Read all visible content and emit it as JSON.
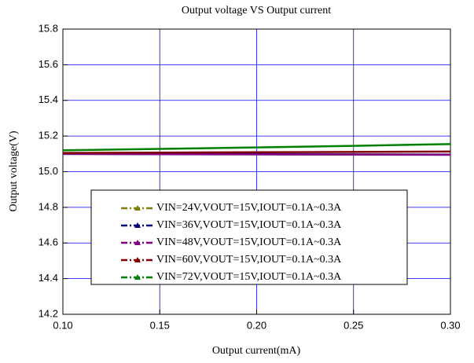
{
  "chart_data": {
    "type": "line",
    "title": "Output voltage VS Output current",
    "xlabel": "Output current(mA)",
    "ylabel": "Output voltage(V)",
    "x": [
      0.1,
      0.15,
      0.2,
      0.25,
      0.3
    ],
    "series": [
      {
        "name": "VIN=24V,VOUT=15V,IOUT=0.1A~0.3A",
        "color": "#808000",
        "values": [
          15.1,
          15.099,
          15.098,
          15.097,
          15.096
        ]
      },
      {
        "name": "VIN=36V,VOUT=15V,IOUT=0.1A~0.3A",
        "color": "#000080",
        "values": [
          15.1,
          15.099,
          15.098,
          15.097,
          15.096
        ]
      },
      {
        "name": "VIN=48V,VOUT=15V,IOUT=0.1A~0.3A",
        "color": "#800080",
        "values": [
          15.1,
          15.098,
          15.097,
          15.096,
          15.095
        ]
      },
      {
        "name": "VIN=60V,VOUT=15V,IOUT=0.1A~0.3A",
        "color": "#800000",
        "values": [
          15.105,
          15.107,
          15.109,
          15.111,
          15.113
        ]
      },
      {
        "name": "VIN=72V,VOUT=15V,IOUT=0.1A~0.3A",
        "color": "#008000",
        "values": [
          15.12,
          15.128,
          15.136,
          15.145,
          15.155
        ]
      }
    ],
    "xlim": [
      0.1,
      0.3
    ],
    "xticks": [
      {
        "value": 0.1,
        "label": "0.10"
      },
      {
        "value": 0.15,
        "label": "0.15"
      },
      {
        "value": 0.2,
        "label": "0.20"
      },
      {
        "value": 0.25,
        "label": "0.25"
      },
      {
        "value": 0.3,
        "label": "0.30"
      }
    ],
    "ylim": [
      14.2,
      15.8
    ],
    "yticks": [
      14.2,
      14.4,
      14.6,
      14.8,
      {
        "value": 15,
        "label": "15.0"
      },
      15.2,
      15.4,
      15.6,
      15.8
    ],
    "grid": true,
    "legend": "center"
  }
}
